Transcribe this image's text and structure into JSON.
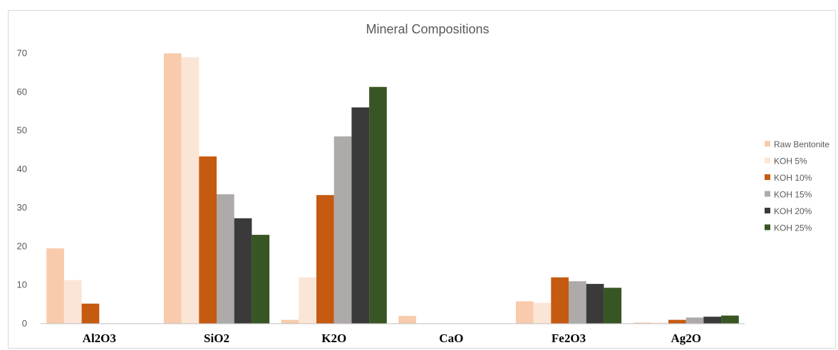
{
  "chart_data": {
    "type": "bar",
    "title": "Mineral Compositions",
    "categories": [
      "Al2O3",
      "SiO2",
      "K2O",
      "CaO",
      "Fe2O3",
      "Ag2O"
    ],
    "series": [
      {
        "name": "Raw Bentonite",
        "color": "#f8cbad",
        "values": [
          19.5,
          70.0,
          1.0,
          2.0,
          5.8,
          0.3
        ]
      },
      {
        "name": "KOH 5%",
        "color": "#fbe5d6",
        "values": [
          11.3,
          69.0,
          12.0,
          0.0,
          5.4,
          0.3
        ]
      },
      {
        "name": "KOH 10%",
        "color": "#c55a11",
        "values": [
          5.2,
          43.3,
          33.3,
          0.0,
          12.0,
          1.0
        ]
      },
      {
        "name": "KOH 15%",
        "color": "#aeaaaa",
        "values": [
          0.0,
          33.5,
          48.5,
          0.0,
          11.0,
          1.6
        ]
      },
      {
        "name": "KOH 20%",
        "color": "#3a3a3a",
        "values": [
          0.0,
          27.3,
          56.0,
          0.0,
          10.3,
          1.8
        ]
      },
      {
        "name": "KOH 25%",
        "color": "#375623",
        "values": [
          0.0,
          23.0,
          61.3,
          0.0,
          9.3,
          2.1
        ]
      }
    ],
    "ylim": [
      0,
      70
    ],
    "yticks": [
      "0",
      "10",
      "20",
      "30",
      "40",
      "50",
      "60",
      "70"
    ],
    "grid": false,
    "legend_position": "right"
  }
}
